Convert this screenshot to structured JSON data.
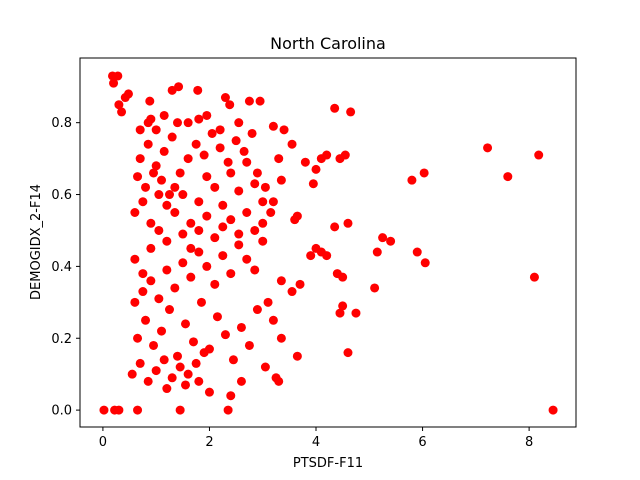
{
  "chart_data": {
    "type": "scatter",
    "title": "North Carolina",
    "xlabel": "PTSDF-F11",
    "ylabel": "DEMOGIDX_2-F14",
    "xlim": [
      -0.43,
      8.88
    ],
    "ylim": [
      -0.047,
      0.98
    ],
    "xticks": [
      0,
      2,
      4,
      6,
      8
    ],
    "yticks": [
      0.0,
      0.2,
      0.4,
      0.6,
      0.8
    ],
    "ytick_labels": [
      "0.0",
      "0.2",
      "0.4",
      "0.6",
      "0.8"
    ],
    "grid": false,
    "legend": "none",
    "marker_color": "#ff0000",
    "series": [
      {
        "points": [
          [
            0.02,
            0.0
          ],
          [
            0.22,
            0.0
          ],
          [
            0.3,
            0.0
          ],
          [
            0.65,
            0.0
          ],
          [
            1.45,
            0.0
          ],
          [
            2.35,
            0.0
          ],
          [
            8.45,
            0.0
          ],
          [
            0.18,
            0.93
          ],
          [
            0.28,
            0.93
          ],
          [
            0.2,
            0.91
          ],
          [
            0.48,
            0.88
          ],
          [
            0.42,
            0.87
          ],
          [
            0.88,
            0.86
          ],
          [
            1.3,
            0.89
          ],
          [
            1.42,
            0.9
          ],
          [
            1.78,
            0.89
          ],
          [
            2.3,
            0.87
          ],
          [
            2.38,
            0.85
          ],
          [
            2.75,
            0.86
          ],
          [
            2.95,
            0.86
          ],
          [
            0.3,
            0.85
          ],
          [
            0.35,
            0.83
          ],
          [
            0.9,
            0.81
          ],
          [
            1.4,
            0.8
          ],
          [
            1.6,
            0.8
          ],
          [
            1.8,
            0.81
          ],
          [
            1.95,
            0.82
          ],
          [
            2.2,
            0.78
          ],
          [
            2.55,
            0.8
          ],
          [
            2.8,
            0.77
          ],
          [
            3.2,
            0.79
          ],
          [
            3.4,
            0.78
          ],
          [
            4.35,
            0.84
          ],
          [
            4.65,
            0.83
          ],
          [
            7.22,
            0.73
          ],
          [
            7.6,
            0.65
          ],
          [
            8.18,
            0.71
          ],
          [
            8.1,
            0.37
          ],
          [
            5.8,
            0.64
          ],
          [
            6.03,
            0.66
          ],
          [
            6.05,
            0.41
          ],
          [
            5.9,
            0.44
          ],
          [
            5.25,
            0.48
          ],
          [
            5.4,
            0.47
          ],
          [
            5.15,
            0.44
          ],
          [
            5.1,
            0.34
          ],
          [
            4.0,
            0.67
          ],
          [
            4.1,
            0.7
          ],
          [
            4.2,
            0.71
          ],
          [
            4.45,
            0.7
          ],
          [
            4.55,
            0.71
          ],
          [
            3.8,
            0.69
          ],
          [
            3.95,
            0.63
          ],
          [
            3.55,
            0.74
          ],
          [
            3.3,
            0.7
          ],
          [
            3.6,
            0.53
          ],
          [
            3.65,
            0.54
          ],
          [
            3.7,
            0.35
          ],
          [
            4.0,
            0.45
          ],
          [
            3.9,
            0.43
          ],
          [
            4.1,
            0.44
          ],
          [
            4.2,
            0.43
          ],
          [
            4.4,
            0.38
          ],
          [
            4.5,
            0.37
          ],
          [
            4.35,
            0.51
          ],
          [
            4.6,
            0.52
          ],
          [
            4.45,
            0.27
          ],
          [
            4.5,
            0.29
          ],
          [
            4.75,
            0.27
          ],
          [
            4.6,
            0.16
          ],
          [
            3.65,
            0.15
          ],
          [
            3.25,
            0.09
          ],
          [
            3.3,
            0.08
          ],
          [
            3.1,
            0.3
          ],
          [
            3.35,
            0.36
          ],
          [
            3.55,
            0.33
          ],
          [
            2.4,
            0.04
          ],
          [
            2.6,
            0.08
          ],
          [
            2.0,
            0.05
          ],
          [
            1.8,
            0.08
          ],
          [
            1.55,
            0.07
          ],
          [
            1.2,
            0.06
          ],
          [
            0.6,
            0.42
          ],
          [
            0.75,
            0.38
          ],
          [
            0.9,
            0.45
          ],
          [
            1.05,
            0.5
          ],
          [
            1.2,
            0.47
          ],
          [
            1.35,
            0.55
          ],
          [
            1.5,
            0.6
          ],
          [
            1.65,
            0.52
          ],
          [
            1.8,
            0.58
          ],
          [
            1.95,
            0.65
          ],
          [
            2.1,
            0.62
          ],
          [
            2.25,
            0.57
          ],
          [
            2.4,
            0.66
          ],
          [
            2.55,
            0.61
          ],
          [
            2.7,
            0.69
          ],
          [
            2.85,
            0.63
          ],
          [
            3.0,
            0.58
          ],
          [
            3.15,
            0.55
          ],
          [
            0.7,
            0.7
          ],
          [
            0.85,
            0.74
          ],
          [
            1.0,
            0.68
          ],
          [
            1.15,
            0.72
          ],
          [
            1.3,
            0.76
          ],
          [
            1.45,
            0.66
          ],
          [
            1.6,
            0.7
          ],
          [
            1.75,
            0.74
          ],
          [
            1.9,
            0.71
          ],
          [
            2.05,
            0.77
          ],
          [
            2.2,
            0.73
          ],
          [
            2.35,
            0.69
          ],
          [
            2.5,
            0.75
          ],
          [
            2.65,
            0.72
          ],
          [
            2.9,
            0.66
          ],
          [
            3.05,
            0.62
          ],
          [
            3.2,
            0.58
          ],
          [
            3.35,
            0.64
          ],
          [
            0.65,
            0.2
          ],
          [
            0.8,
            0.25
          ],
          [
            0.95,
            0.18
          ],
          [
            1.1,
            0.22
          ],
          [
            1.25,
            0.28
          ],
          [
            1.4,
            0.15
          ],
          [
            1.55,
            0.24
          ],
          [
            1.7,
            0.19
          ],
          [
            1.85,
            0.3
          ],
          [
            2.0,
            0.17
          ],
          [
            2.15,
            0.26
          ],
          [
            2.3,
            0.21
          ],
          [
            2.45,
            0.14
          ],
          [
            2.6,
            0.23
          ],
          [
            2.75,
            0.18
          ],
          [
            2.9,
            0.28
          ],
          [
            3.05,
            0.12
          ],
          [
            3.2,
            0.25
          ],
          [
            3.35,
            0.2
          ],
          [
            0.6,
            0.3
          ],
          [
            0.75,
            0.33
          ],
          [
            0.9,
            0.36
          ],
          [
            1.05,
            0.31
          ],
          [
            1.2,
            0.39
          ],
          [
            1.35,
            0.34
          ],
          [
            1.5,
            0.41
          ],
          [
            1.65,
            0.37
          ],
          [
            1.8,
            0.44
          ],
          [
            1.95,
            0.4
          ],
          [
            2.1,
            0.35
          ],
          [
            2.25,
            0.43
          ],
          [
            2.4,
            0.38
          ],
          [
            2.55,
            0.46
          ],
          [
            2.7,
            0.42
          ],
          [
            2.85,
            0.39
          ],
          [
            3.0,
            0.47
          ],
          [
            0.55,
            0.1
          ],
          [
            0.7,
            0.13
          ],
          [
            0.85,
            0.08
          ],
          [
            1.0,
            0.11
          ],
          [
            1.15,
            0.14
          ],
          [
            1.3,
            0.09
          ],
          [
            1.45,
            0.12
          ],
          [
            1.6,
            0.1
          ],
          [
            1.75,
            0.13
          ],
          [
            1.9,
            0.16
          ],
          [
            0.6,
            0.55
          ],
          [
            0.75,
            0.58
          ],
          [
            0.9,
            0.52
          ],
          [
            1.05,
            0.6
          ],
          [
            1.2,
            0.57
          ],
          [
            1.35,
            0.62
          ],
          [
            1.5,
            0.49
          ],
          [
            1.65,
            0.45
          ],
          [
            1.8,
            0.5
          ],
          [
            1.95,
            0.54
          ],
          [
            2.1,
            0.48
          ],
          [
            2.25,
            0.51
          ],
          [
            2.4,
            0.53
          ],
          [
            2.55,
            0.49
          ],
          [
            2.7,
            0.55
          ],
          [
            2.85,
            0.5
          ],
          [
            3.0,
            0.52
          ],
          [
            0.65,
            0.65
          ],
          [
            0.8,
            0.62
          ],
          [
            0.95,
            0.66
          ],
          [
            1.1,
            0.64
          ],
          [
            1.25,
            0.6
          ],
          [
            0.7,
            0.78
          ],
          [
            0.85,
            0.8
          ],
          [
            1.0,
            0.78
          ],
          [
            1.15,
            0.82
          ]
        ]
      }
    ]
  }
}
